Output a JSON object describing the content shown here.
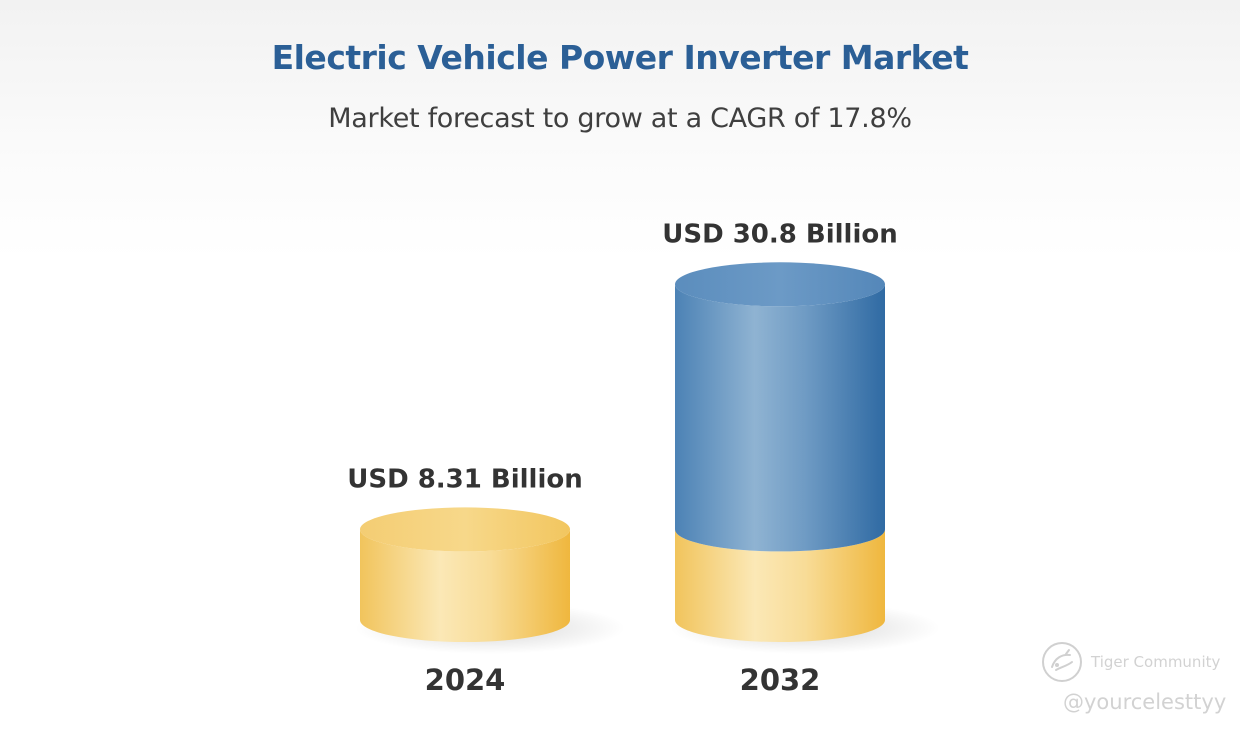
{
  "chart_data": {
    "type": "bar",
    "title": "Electric Vehicle Power Inverter Market",
    "subtitle": "Market forecast to grow at a CAGR of 17.8%",
    "categories": [
      "2024",
      "2032"
    ],
    "values": [
      8.31,
      30.8
    ],
    "value_labels": [
      "USD 8.31 Billion",
      "USD 30.8 Billion"
    ],
    "unit": "USD Billion",
    "xlabel": "",
    "ylabel": "",
    "grid": false,
    "style": "3d-cylinder",
    "colors": {
      "base": "#f2c14e",
      "base_highlight": "#fbe7b2",
      "growth": "#3d78ad",
      "growth_highlight": "#8fb4d3",
      "title": "#2b5f96",
      "text": "#333333"
    }
  },
  "watermark": {
    "brand": "Tiger Community",
    "handle": "@yourcelesttyy",
    "icon": "tiger-community-logo-icon"
  }
}
